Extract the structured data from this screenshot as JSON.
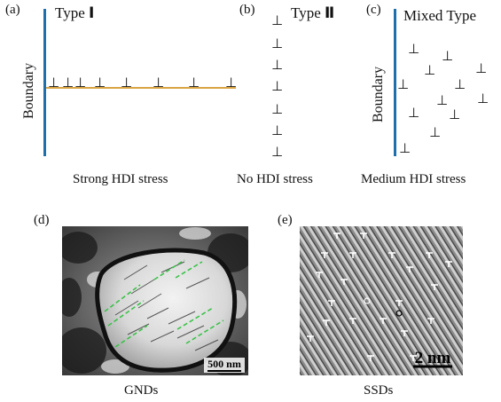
{
  "panels": {
    "a": {
      "label": "(a)",
      "title_text": "Type ",
      "title_roman": "Ⅰ",
      "boundary_label": "Boundary",
      "caption": "Strong HDI stress"
    },
    "b": {
      "label": "(b)",
      "title_text": "Type ",
      "title_roman": "Ⅱ",
      "caption": "No HDI stress"
    },
    "c": {
      "label": "(c)",
      "title_text": "Mixed Type",
      "boundary_label": "Boundary",
      "caption": "Medium HDI stress"
    },
    "d": {
      "label": "(d)",
      "scale_bar_label": "500 nm",
      "caption": "GNDs"
    },
    "e": {
      "label": "(e)",
      "scale_bar_label": "2 nm",
      "caption": "SSDs"
    }
  },
  "dislocation_symbol": "⊥",
  "colors": {
    "boundary_line": "#1f6fad",
    "slip_plane": "#d9a441",
    "gnd_marks": "#3cc24a",
    "text": "#111111"
  }
}
